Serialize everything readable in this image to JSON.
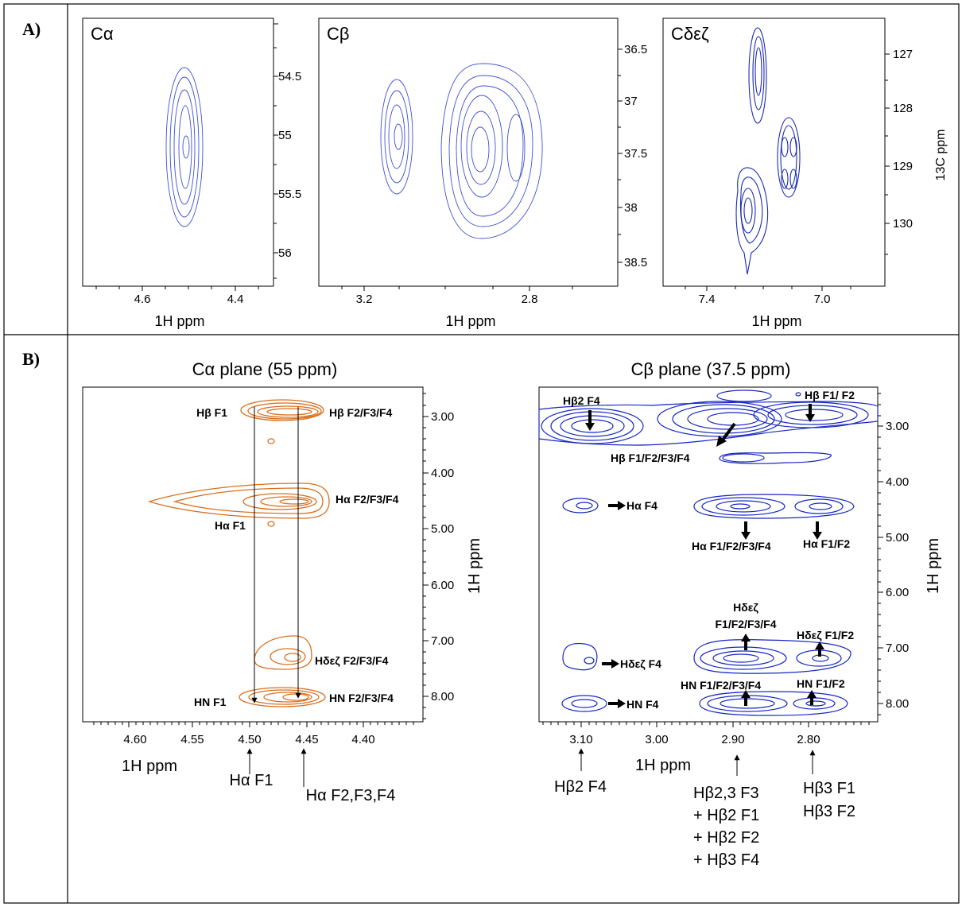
{
  "panel_a": {
    "label": "A)",
    "shared_right_label": "13C ppm",
    "subpanels": [
      {
        "title": "Cα",
        "x_label": "1H ppm",
        "x_ticks": [
          "4.6",
          "4.4"
        ],
        "y_ticks": [
          "54.5",
          "55",
          "55.5",
          "56"
        ],
        "color": "#3f51d6"
      },
      {
        "title": "Cβ",
        "x_label": "1H ppm",
        "x_ticks": [
          "3.2",
          "2.8"
        ],
        "y_ticks": [
          "36.5",
          "37",
          "37.5",
          "38",
          "38.5"
        ],
        "color": "#3f51d6"
      },
      {
        "title": "Cδεζ",
        "x_label": "1H ppm",
        "x_ticks": [
          "7.4",
          "7.0"
        ],
        "y_ticks": [
          "127",
          "128",
          "129",
          "130"
        ],
        "color": "#1a2bb5"
      }
    ]
  },
  "panel_b": {
    "label": "B)",
    "ca_plane": {
      "title": "Cα plane (55 ppm)",
      "x_label": "1H ppm",
      "y_label": "1H ppm",
      "x_ticks": [
        "4.60",
        "4.55",
        "4.50",
        "4.45",
        "4.40"
      ],
      "y_ticks": [
        "3.00",
        "4.00",
        "5.00",
        "6.00",
        "7.00",
        "8.00"
      ],
      "color": "#d86f1f",
      "annotations": [
        "Hβ F1",
        "Hβ F2/F3/F4",
        "Hα F2/F3/F4",
        "Hα F1",
        "Hδεζ F2/F3/F4",
        "HN F1",
        "HN F2/F3/F4"
      ],
      "bottom_markers": [
        "Hα F1",
        "Hα F2,F3,F4"
      ]
    },
    "cb_plane": {
      "title": "Cβ plane (37.5 ppm)",
      "x_label": "1H ppm",
      "y_label": "1H ppm",
      "x_ticks": [
        "3.10",
        "3.00",
        "2.90",
        "2.80"
      ],
      "y_ticks": [
        "3.00",
        "4.00",
        "5.00",
        "6.00",
        "7.00",
        "8.00"
      ],
      "color": "#1727c4",
      "annotations": [
        "Hβ2 F4",
        "Hβ F1/ F2",
        "Hβ F1/F2/F3/F4",
        "Hα F4",
        "Hα F1/F2/F3/F4",
        "Hα F1/F2",
        "Hδεζ",
        "F1/F2/F3/F4",
        "Hδεζ F1/F2",
        "Hδεζ F4",
        "HN F1/F2/F3/F4",
        "HN F1/F2",
        "HN F4"
      ],
      "bottom_markers": [
        {
          "lines": [
            "Hβ2 F4"
          ]
        },
        {
          "lines": [
            "Hβ2,3 F3",
            "+ Hβ2 F1",
            "+ Hβ2 F2",
            "+ Hβ3 F4"
          ]
        },
        {
          "lines": [
            "Hβ3 F1",
            "Hβ3 F2"
          ]
        }
      ]
    }
  }
}
